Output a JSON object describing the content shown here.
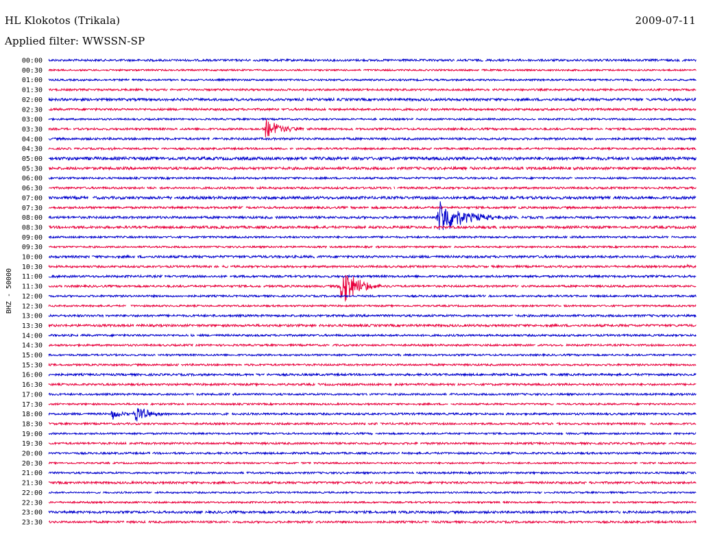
{
  "header": {
    "station": "HL Klokotos (Trikala)",
    "date": "2009-07-11",
    "filter": "Applied filter: WWSSN-SP"
  },
  "chart_data": {
    "type": "line",
    "title": "HL Klokotos (Trikala)",
    "subtitle": "Applied filter: WWSSN-SP",
    "ylabel": "BHZ - 50000",
    "xlabel": "",
    "row_labels": [
      "00:00",
      "00:30",
      "01:00",
      "01:30",
      "02:00",
      "02:30",
      "03:00",
      "03:30",
      "04:00",
      "04:30",
      "05:00",
      "05:30",
      "06:00",
      "06:30",
      "07:00",
      "07:30",
      "08:00",
      "08:30",
      "09:00",
      "09:30",
      "10:00",
      "10:30",
      "11:00",
      "11:30",
      "12:00",
      "12:30",
      "13:00",
      "13:30",
      "14:00",
      "14:30",
      "15:00",
      "15:30",
      "16:00",
      "16:30",
      "17:00",
      "17:30",
      "18:00",
      "18:30",
      "19:00",
      "19:30",
      "20:00",
      "20:30",
      "21:00",
      "21:30",
      "22:00",
      "22:30",
      "23:00",
      "23:30"
    ],
    "row_minutes": 30,
    "colors": {
      "even": "#0000cc",
      "odd": "#e8003c"
    },
    "noise_level": [
      1.5,
      1.2,
      1.3,
      1.4,
      1.8,
      1.6,
      1.3,
      1.5,
      1.6,
      1.4,
      2.2,
      1.9,
      1.4,
      1.5,
      2.0,
      1.6,
      1.7,
      1.8,
      1.4,
      1.3,
      1.7,
      1.5,
      1.6,
      1.5,
      1.4,
      1.3,
      1.6,
      1.7,
      1.5,
      1.4,
      1.3,
      1.4,
      1.6,
      1.5,
      1.4,
      1.3,
      1.5,
      1.4,
      1.3,
      1.5,
      1.4,
      1.2,
      1.4,
      1.6,
      1.2,
      1.3,
      1.7,
      1.5
    ],
    "events": [
      {
        "row": 7,
        "minute": 10.0,
        "amplitude": 16,
        "duration": 2.5
      },
      {
        "row": 16,
        "minute": 18.0,
        "amplitude": 30,
        "duration": 3.5
      },
      {
        "row": 23,
        "minute": 13.5,
        "amplitude": 32,
        "duration": 2.5
      },
      {
        "row": 36,
        "minute": 2.9,
        "amplitude": 9,
        "duration": 1.3
      },
      {
        "row": 36,
        "minute": 4.0,
        "amplitude": 14,
        "duration": 2.0
      },
      {
        "row": 22,
        "minute": 0.1,
        "amplitude": 5,
        "duration": 0.6
      },
      {
        "row": 21,
        "minute": 29.5,
        "amplitude": 4,
        "duration": 0.6
      },
      {
        "row": 8,
        "minute": 24.6,
        "amplitude": 4,
        "duration": 0.4
      },
      {
        "row": 9,
        "minute": 2.9,
        "amplitude": 4,
        "duration": 0.3
      }
    ]
  }
}
